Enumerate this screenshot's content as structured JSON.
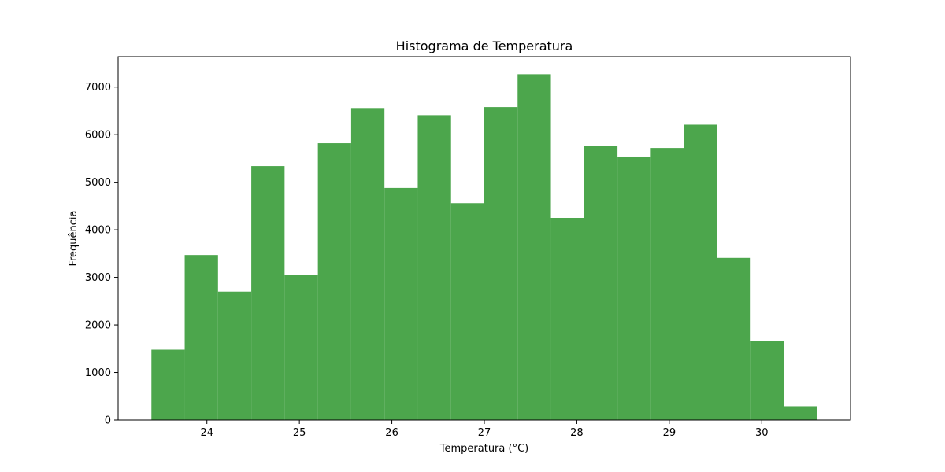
{
  "chart_data": {
    "type": "bar",
    "title": "Histograma de Temperatura",
    "xlabel": "Temperatura (°C)",
    "ylabel": "Frequência",
    "bin_edges": [
      23.4,
      23.76,
      24.12,
      24.48,
      24.84,
      25.2,
      25.56,
      25.92,
      26.28,
      26.64,
      27.0,
      27.36,
      27.72,
      28.08,
      28.44,
      28.8,
      29.16,
      29.52,
      29.88,
      30.24,
      30.6
    ],
    "values": [
      1480,
      3470,
      2700,
      5340,
      3050,
      5820,
      6560,
      4880,
      6410,
      4560,
      6580,
      7270,
      4250,
      5770,
      5540,
      5720,
      6210,
      3410,
      1660,
      290
    ],
    "xlim": [
      23.04,
      30.96
    ],
    "ylim": [
      0,
      7640
    ],
    "x_ticks": [
      "24",
      "25",
      "26",
      "27",
      "28",
      "29",
      "30"
    ],
    "y_ticks": [
      "0",
      "1000",
      "2000",
      "3000",
      "4000",
      "5000",
      "6000",
      "7000"
    ],
    "bar_color": "#4ca64c",
    "grid": false,
    "legend": "none"
  }
}
